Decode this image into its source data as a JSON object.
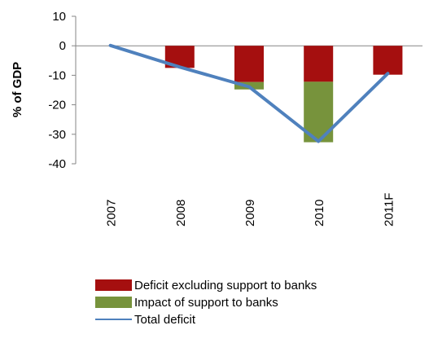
{
  "chart_data": {
    "type": "bar",
    "stacked": true,
    "categories": [
      "2007",
      "2008",
      "2009",
      "2010",
      "2011F"
    ],
    "ylabel": "% of GDP",
    "xlabel": "",
    "title": "",
    "ylim": [
      -40,
      10
    ],
    "yticks": [
      10,
      0,
      -10,
      -20,
      -30,
      -40
    ],
    "grid": false,
    "legend_position": "bottom",
    "series": [
      {
        "name": "Deficit excluding support to banks",
        "kind": "bar",
        "color": "#A50F0F",
        "values": [
          0,
          -7.5,
          -12.3,
          -12.2,
          -9.8
        ]
      },
      {
        "name": "Impact of support to banks",
        "kind": "bar",
        "color": "#77933C",
        "values": [
          0,
          0,
          -2.5,
          -20.5,
          0
        ]
      },
      {
        "name": "Total deficit",
        "kind": "line",
        "color": "#4F81BD",
        "values": [
          0.1,
          -7.2,
          -13.9,
          -32.4,
          -9.4
        ]
      }
    ]
  }
}
